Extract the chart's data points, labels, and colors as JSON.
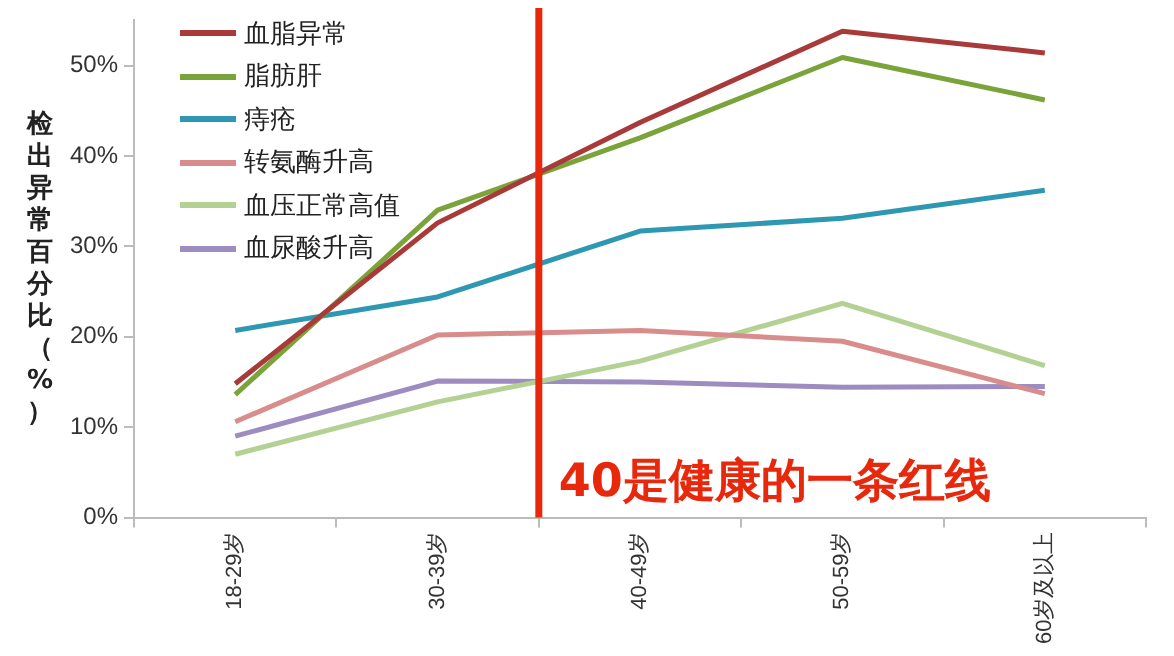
{
  "chart_data": {
    "type": "line",
    "ylabel": "检出异常百分比（%）",
    "categories": [
      "18-29岁",
      "30-39岁",
      "40-49岁",
      "50-59岁",
      "60岁及以上"
    ],
    "series": [
      {
        "name": "血脂异常",
        "color": "#a83a3a",
        "values": [
          14.8,
          32.6,
          43.7,
          53.8,
          51.4
        ]
      },
      {
        "name": "脂肪肝",
        "color": "#7aa33a",
        "values": [
          13.6,
          34.0,
          42.0,
          50.9,
          46.2
        ]
      },
      {
        "name": "痔疮",
        "color": "#2e98b3",
        "values": [
          20.7,
          24.4,
          31.7,
          33.1,
          36.2
        ]
      },
      {
        "name": "转氨酶升高",
        "color": "#d98c8c",
        "values": [
          10.6,
          20.2,
          20.7,
          19.5,
          13.7
        ]
      },
      {
        "name": "血压正常高值",
        "color": "#b3d193",
        "values": [
          7.0,
          12.8,
          17.3,
          23.7,
          16.8
        ]
      },
      {
        "name": "血尿酸升高",
        "color": "#9c8cbf",
        "values": [
          9.0,
          15.1,
          15.0,
          14.4,
          14.5
        ]
      }
    ],
    "ylim": [
      0,
      55
    ],
    "yticks": [
      {
        "value": 0,
        "label": "0%"
      },
      {
        "value": 10,
        "label": "10%"
      },
      {
        "value": 20,
        "label": "20%"
      },
      {
        "value": 30,
        "label": "30%"
      },
      {
        "value": 40,
        "label": "40%"
      },
      {
        "value": 50,
        "label": "50%"
      }
    ],
    "ref_lines": [
      {
        "axis": "x",
        "value": "40-49岁",
        "label": "40是健康的一条红线",
        "color": "#e8280c"
      }
    ],
    "grid": false,
    "legend": "top left",
    "marker": "none",
    "line_style": "solid"
  }
}
